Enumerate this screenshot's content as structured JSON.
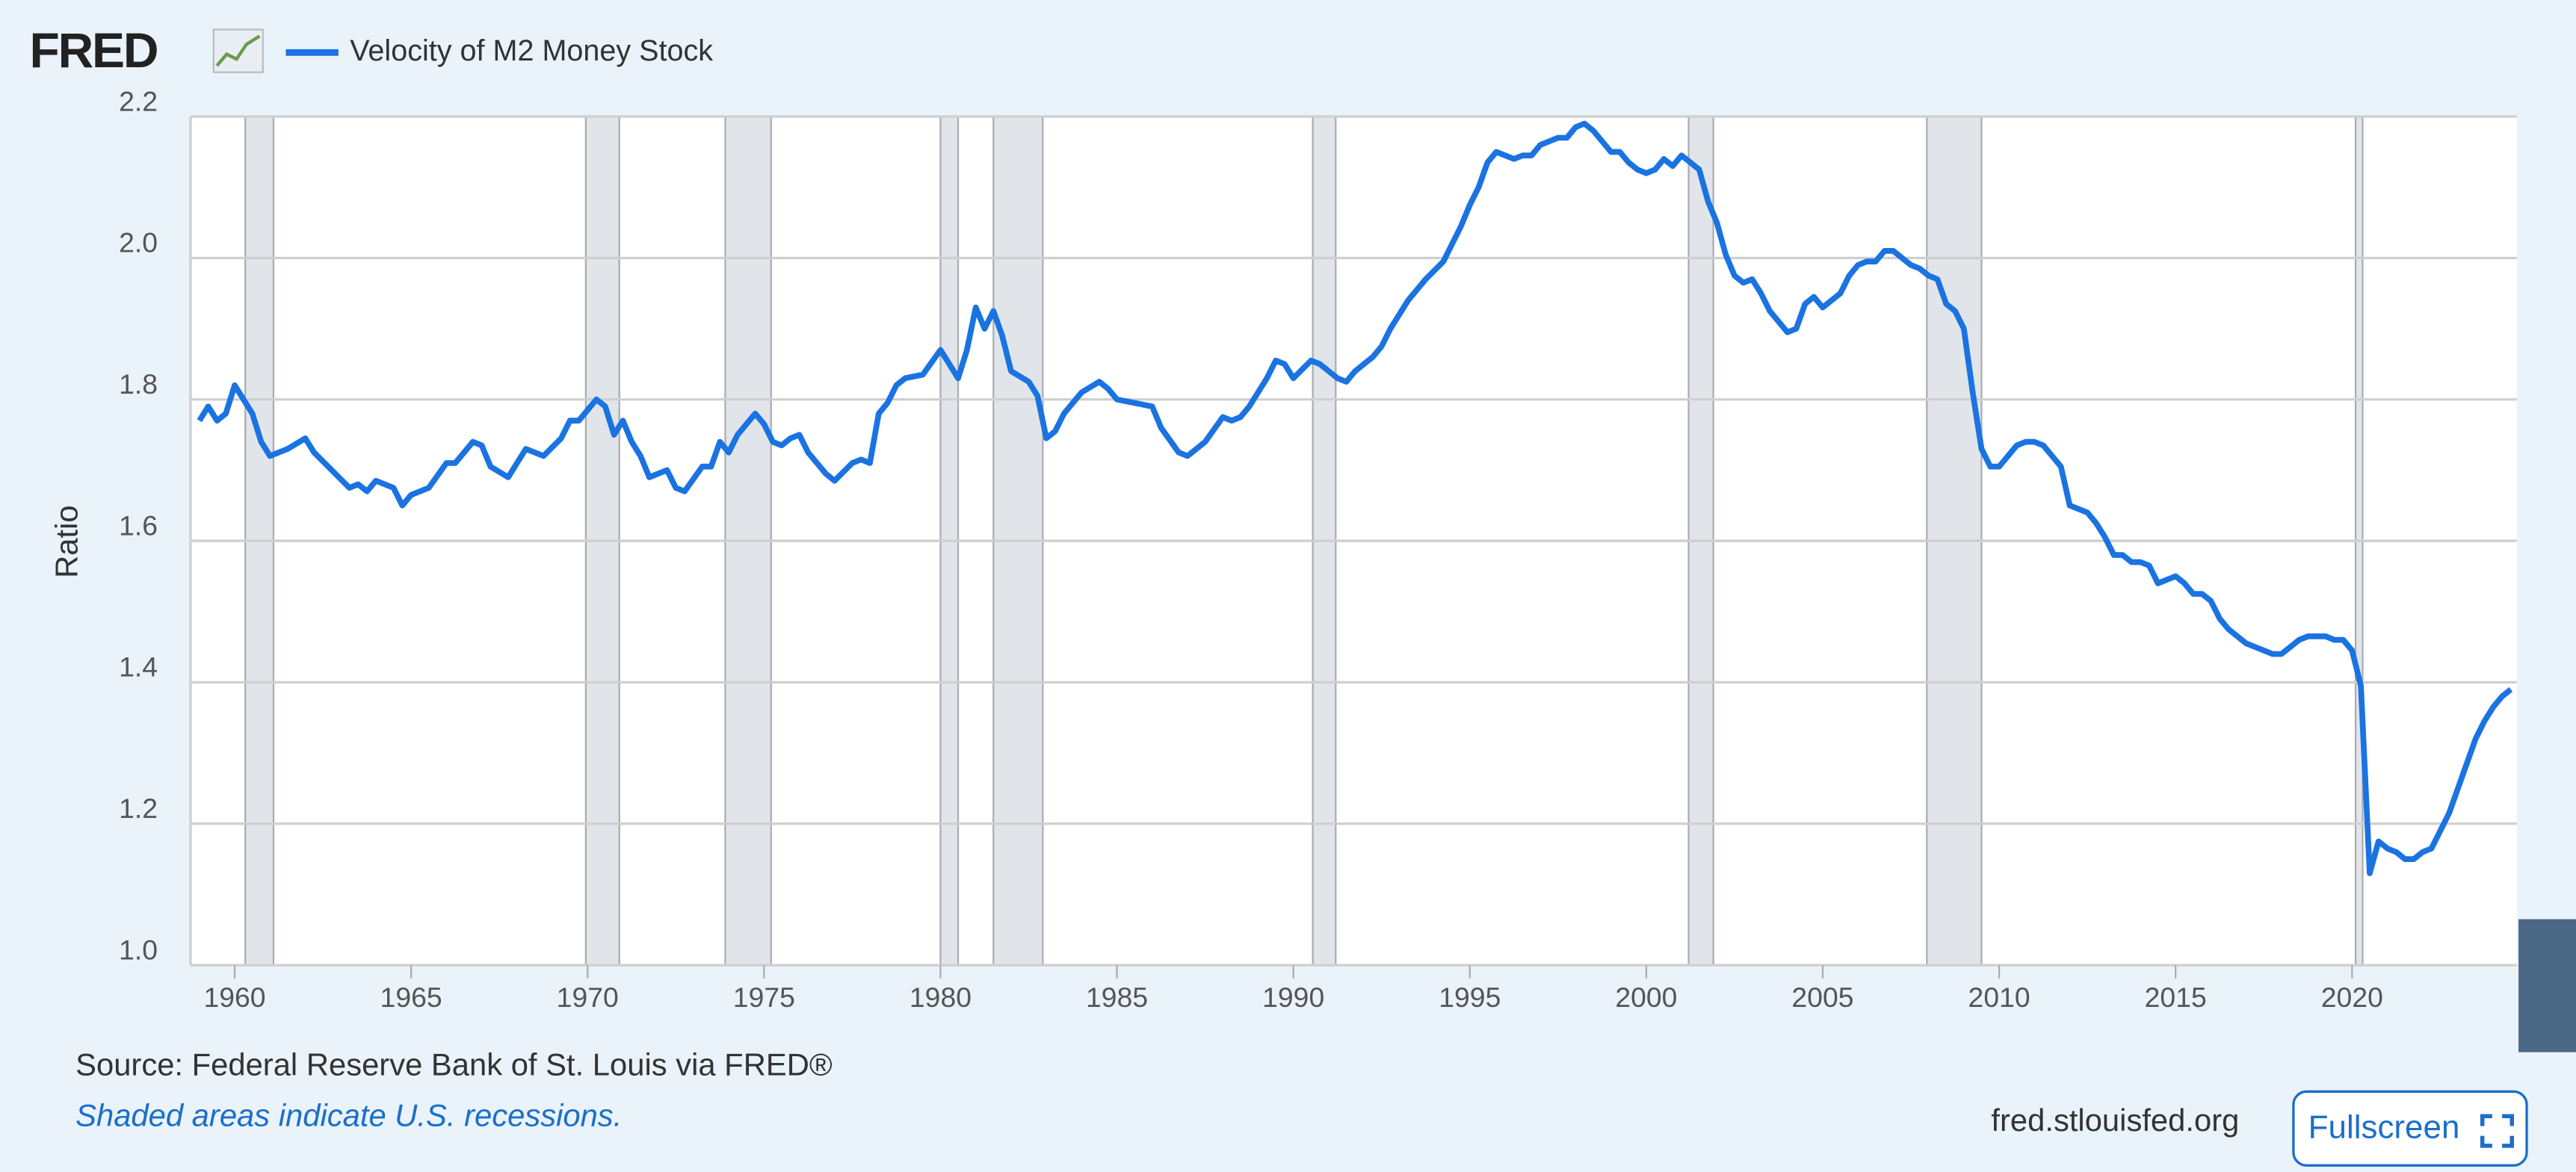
{
  "brand": "FRED",
  "chart_data": {
    "type": "line",
    "y_label": "Ratio",
    "source": "Source: Federal Reserve Bank of St. Louis via FRED®",
    "note": "Shaded areas indicate U.S. recessions.",
    "url": "fred.stlouisfed.org",
    "xlim": [
      1958.75,
      2024.67
    ],
    "ylim": [
      1.0,
      2.2
    ],
    "xticks": [
      1960,
      1965,
      1970,
      1975,
      1980,
      1985,
      1990,
      1995,
      2000,
      2005,
      2010,
      2015,
      2020
    ],
    "yticks": [
      2.2,
      {
        "value": 2,
        "label": "2.0"
      },
      1.8,
      1.6,
      1.4,
      1.2,
      {
        "value": 1,
        "label": "1.0"
      }
    ],
    "grid": true,
    "recessions": [
      [
        1960.3,
        1961.1
      ],
      [
        1969.95,
        1970.9
      ],
      [
        1973.9,
        1975.2
      ],
      [
        1980.0,
        1980.5
      ],
      [
        1981.5,
        1982.9
      ],
      [
        1990.55,
        1991.2
      ],
      [
        2001.2,
        2001.9
      ],
      [
        2007.95,
        2009.5
      ],
      [
        2020.1,
        2020.3
      ]
    ],
    "x": [
      1959.0,
      1959.25,
      1959.5,
      1959.75,
      1960.0,
      1960.5,
      1960.75,
      1961.0,
      1961.5,
      1962.0,
      1962.25,
      1962.75,
      1963.25,
      1963.5,
      1963.75,
      1964.0,
      1964.5,
      1964.75,
      1965.0,
      1965.5,
      1966.0,
      1966.25,
      1966.75,
      1967.0,
      1967.25,
      1967.75,
      1968.25,
      1968.75,
      1969.25,
      1969.5,
      1969.75,
      1970.25,
      1970.5,
      1970.75,
      1971.0,
      1971.25,
      1971.5,
      1971.75,
      1972.25,
      1972.5,
      1972.75,
      1973.25,
      1973.5,
      1973.75,
      1974.0,
      1974.25,
      1974.75,
      1975.0,
      1975.25,
      1975.5,
      1975.75,
      1976.0,
      1976.25,
      1976.5,
      1976.75,
      1977.0,
      1977.5,
      1977.75,
      1978.0,
      1978.25,
      1978.5,
      1978.75,
      1979.0,
      1979.5,
      1980.0,
      1980.25,
      1980.5,
      1980.75,
      1981.0,
      1981.25,
      1981.5,
      1981.75,
      1982.0,
      1982.5,
      1982.75,
      1983.0,
      1983.25,
      1983.5,
      1984.0,
      1984.5,
      1984.75,
      1985.0,
      1985.5,
      1986.0,
      1986.25,
      1986.75,
      1987.0,
      1987.5,
      1988.0,
      1988.25,
      1988.5,
      1988.75,
      1989.25,
      1989.5,
      1989.75,
      1990.0,
      1990.5,
      1990.75,
      1991.25,
      1991.5,
      1991.75,
      1992.25,
      1992.5,
      1992.75,
      1993.25,
      1993.75,
      1994.25,
      1994.5,
      1994.75,
      1995.0,
      1995.25,
      1995.5,
      1995.75,
      1996.0,
      1996.25,
      1996.5,
      1996.75,
      1997.0,
      1997.5,
      1997.75,
      1998.0,
      1998.25,
      1998.5,
      1998.75,
      1999.0,
      1999.25,
      1999.5,
      1999.75,
      2000.0,
      2000.25,
      2000.5,
      2000.75,
      2001.0,
      2001.25,
      2001.5,
      2001.75,
      2002.0,
      2002.25,
      2002.5,
      2002.75,
      2003.0,
      2003.25,
      2003.5,
      2003.75,
      2004.0,
      2004.25,
      2004.5,
      2004.75,
      2005.0,
      2005.25,
      2005.5,
      2005.75,
      2006.0,
      2006.25,
      2006.5,
      2006.75,
      2007.0,
      2007.25,
      2007.5,
      2007.75,
      2008.0,
      2008.25,
      2008.5,
      2008.75,
      2009.0,
      2009.25,
      2009.5,
      2009.75,
      2010.0,
      2010.25,
      2010.5,
      2010.75,
      2011.0,
      2011.25,
      2011.5,
      2011.75,
      2012.0,
      2012.25,
      2012.5,
      2012.75,
      2013.0,
      2013.25,
      2013.5,
      2013.75,
      2014.0,
      2014.25,
      2014.5,
      2014.75,
      2015.0,
      2015.25,
      2015.5,
      2015.75,
      2016.0,
      2016.25,
      2016.5,
      2016.75,
      2017.0,
      2017.25,
      2017.5,
      2017.75,
      2018.0,
      2018.25,
      2018.5,
      2018.75,
      2019.0,
      2019.25,
      2019.5,
      2019.75,
      2020.0,
      2020.25,
      2020.5,
      2020.75,
      2021.0,
      2021.25,
      2021.5,
      2021.75,
      2022.0,
      2022.25,
      2022.5,
      2022.75,
      2023.0,
      2023.25,
      2023.5,
      2023.75,
      2024.0,
      2024.25,
      2024.5
    ],
    "series": [
      {
        "name": "Velocity of M2 Money Stock",
        "color": "#1a73e1",
        "values": [
          1.77,
          1.79,
          1.77,
          1.78,
          1.82,
          1.78,
          1.74,
          1.72,
          1.73,
          1.745,
          1.725,
          1.7,
          1.675,
          1.68,
          1.67,
          1.685,
          1.675,
          1.65,
          1.665,
          1.675,
          1.71,
          1.71,
          1.74,
          1.735,
          1.705,
          1.69,
          1.73,
          1.72,
          1.745,
          1.77,
          1.77,
          1.8,
          1.79,
          1.75,
          1.77,
          1.74,
          1.72,
          1.69,
          1.7,
          1.675,
          1.67,
          1.705,
          1.705,
          1.74,
          1.725,
          1.75,
          1.78,
          1.765,
          1.74,
          1.735,
          1.745,
          1.75,
          1.725,
          1.71,
          1.695,
          1.685,
          1.71,
          1.715,
          1.71,
          1.78,
          1.795,
          1.82,
          1.83,
          1.835,
          1.87,
          1.85,
          1.83,
          1.87,
          1.93,
          1.9,
          1.925,
          1.89,
          1.84,
          1.825,
          1.805,
          1.745,
          1.755,
          1.78,
          1.81,
          1.825,
          1.815,
          1.8,
          1.795,
          1.79,
          1.76,
          1.725,
          1.72,
          1.74,
          1.775,
          1.77,
          1.775,
          1.79,
          1.83,
          1.855,
          1.85,
          1.83,
          1.855,
          1.85,
          1.83,
          1.825,
          1.84,
          1.86,
          1.875,
          1.9,
          1.94,
          1.97,
          1.995,
          2.02,
          2.045,
          2.075,
          2.1,
          2.135,
          2.15,
          2.145,
          2.14,
          2.145,
          2.145,
          2.16,
          2.17,
          2.17,
          2.185,
          2.19,
          2.18,
          2.165,
          2.15,
          2.15,
          2.135,
          2.125,
          2.12,
          2.125,
          2.14,
          2.13,
          2.145,
          2.135,
          2.125,
          2.08,
          2.05,
          2.005,
          1.975,
          1.965,
          1.97,
          1.95,
          1.925,
          1.91,
          1.895,
          1.9,
          1.935,
          1.945,
          1.93,
          1.94,
          1.95,
          1.975,
          1.99,
          1.995,
          1.995,
          2.01,
          2.01,
          2.0,
          1.99,
          1.985,
          1.975,
          1.97,
          1.935,
          1.925,
          1.9,
          1.81,
          1.73,
          1.705,
          1.705,
          1.72,
          1.735,
          1.74,
          1.74,
          1.735,
          1.72,
          1.705,
          1.65,
          1.645,
          1.64,
          1.625,
          1.605,
          1.58,
          1.58,
          1.57,
          1.57,
          1.565,
          1.54,
          1.545,
          1.55,
          1.54,
          1.525,
          1.525,
          1.515,
          1.49,
          1.475,
          1.465,
          1.455,
          1.45,
          1.445,
          1.44,
          1.44,
          1.45,
          1.46,
          1.465,
          1.465,
          1.465,
          1.46,
          1.46,
          1.445,
          1.395,
          1.13,
          1.175,
          1.165,
          1.16,
          1.15,
          1.15,
          1.16,
          1.165,
          1.19,
          1.215,
          1.25,
          1.285,
          1.32,
          1.345,
          1.365,
          1.38,
          1.39
        ]
      }
    ]
  },
  "button": "Fullscreen"
}
